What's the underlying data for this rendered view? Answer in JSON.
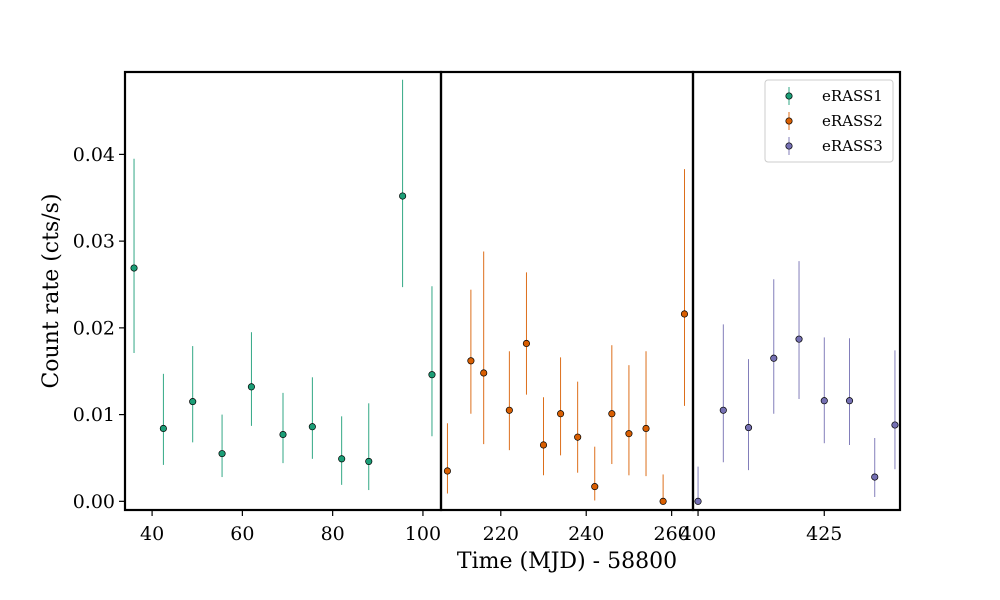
{
  "chart_data": {
    "type": "scatter",
    "xlabel": "Time (MJD) - 58800",
    "ylabel": "Count rate (cts/s)",
    "ylim": [
      -0.001,
      0.0495
    ],
    "yticks": [
      0.0,
      0.01,
      0.02,
      0.03,
      0.04
    ],
    "ytick_labels": [
      "0.00",
      "0.01",
      "0.02",
      "0.03",
      "0.04"
    ],
    "legend_position": "top-right",
    "panels": [
      {
        "name": "eRASS1",
        "color": "#1b9e77",
        "xlim": [
          34,
          104
        ],
        "xticks": [
          40,
          60,
          80,
          100
        ],
        "xtick_labels": [
          "40",
          "60",
          "80",
          "100"
        ],
        "points": [
          {
            "x": 36.0,
            "y": 0.0269,
            "ylo": 0.0171,
            "yhi": 0.0395
          },
          {
            "x": 42.5,
            "y": 0.0084,
            "ylo": 0.0042,
            "yhi": 0.0147
          },
          {
            "x": 49.0,
            "y": 0.0115,
            "ylo": 0.0068,
            "yhi": 0.0179
          },
          {
            "x": 55.5,
            "y": 0.0055,
            "ylo": 0.0028,
            "yhi": 0.01
          },
          {
            "x": 62.0,
            "y": 0.0132,
            "ylo": 0.0087,
            "yhi": 0.0195
          },
          {
            "x": 69.0,
            "y": 0.0077,
            "ylo": 0.0044,
            "yhi": 0.0125
          },
          {
            "x": 75.5,
            "y": 0.0086,
            "ylo": 0.0049,
            "yhi": 0.0143
          },
          {
            "x": 82.0,
            "y": 0.0049,
            "ylo": 0.0019,
            "yhi": 0.0098
          },
          {
            "x": 88.0,
            "y": 0.0046,
            "ylo": 0.0013,
            "yhi": 0.0113
          },
          {
            "x": 95.5,
            "y": 0.0352,
            "ylo": 0.0247,
            "yhi": 0.0486
          },
          {
            "x": 102.0,
            "y": 0.0146,
            "ylo": 0.0075,
            "yhi": 0.0248
          }
        ]
      },
      {
        "name": "eRASS2",
        "color": "#d95f02",
        "xlim": [
          206,
          265
        ],
        "xticks": [
          220,
          240,
          260
        ],
        "xtick_labels": [
          "220",
          "240",
          "260"
        ],
        "points": [
          {
            "x": 207.5,
            "y": 0.0035,
            "ylo": 0.0009,
            "yhi": 0.009
          },
          {
            "x": 213.0,
            "y": 0.0162,
            "ylo": 0.0101,
            "yhi": 0.0244
          },
          {
            "x": 216.0,
            "y": 0.0148,
            "ylo": 0.0066,
            "yhi": 0.0288
          },
          {
            "x": 222.0,
            "y": 0.0105,
            "ylo": 0.0059,
            "yhi": 0.0173
          },
          {
            "x": 226.0,
            "y": 0.0182,
            "ylo": 0.0123,
            "yhi": 0.0264
          },
          {
            "x": 230.0,
            "y": 0.0065,
            "ylo": 0.003,
            "yhi": 0.012
          },
          {
            "x": 234.0,
            "y": 0.0101,
            "ylo": 0.0053,
            "yhi": 0.0166
          },
          {
            "x": 238.0,
            "y": 0.0074,
            "ylo": 0.0033,
            "yhi": 0.0138
          },
          {
            "x": 242.0,
            "y": 0.0017,
            "ylo": 0.0001,
            "yhi": 0.0063
          },
          {
            "x": 246.0,
            "y": 0.0101,
            "ylo": 0.0043,
            "yhi": 0.018
          },
          {
            "x": 250.0,
            "y": 0.0078,
            "ylo": 0.003,
            "yhi": 0.0157
          },
          {
            "x": 254.0,
            "y": 0.0084,
            "ylo": 0.0029,
            "yhi": 0.0173
          },
          {
            "x": 258.0,
            "y": 0.0,
            "ylo": 0.0,
            "yhi": 0.0031
          },
          {
            "x": 263.0,
            "y": 0.0216,
            "ylo": 0.011,
            "yhi": 0.0383
          }
        ]
      },
      {
        "name": "eRASS3",
        "color": "#7570b3",
        "xlim": [
          399,
          440
        ],
        "xticks": [
          400,
          425
        ],
        "xtick_labels": [
          "400",
          "425"
        ],
        "points": [
          {
            "x": 400.0,
            "y": 0.0,
            "ylo": 0.0,
            "yhi": 0.004
          },
          {
            "x": 405.0,
            "y": 0.0105,
            "ylo": 0.0045,
            "yhi": 0.0204
          },
          {
            "x": 410.0,
            "y": 0.0085,
            "ylo": 0.0036,
            "yhi": 0.0164
          },
          {
            "x": 415.0,
            "y": 0.0165,
            "ylo": 0.0101,
            "yhi": 0.0256
          },
          {
            "x": 420.0,
            "y": 0.0187,
            "ylo": 0.0118,
            "yhi": 0.0277
          },
          {
            "x": 425.0,
            "y": 0.0116,
            "ylo": 0.0067,
            "yhi": 0.0189
          },
          {
            "x": 430.0,
            "y": 0.0116,
            "ylo": 0.0065,
            "yhi": 0.0188
          },
          {
            "x": 435.0,
            "y": 0.0028,
            "ylo": 0.0005,
            "yhi": 0.0073
          },
          {
            "x": 439.0,
            "y": 0.0088,
            "ylo": 0.0037,
            "yhi": 0.0174
          }
        ]
      }
    ]
  }
}
